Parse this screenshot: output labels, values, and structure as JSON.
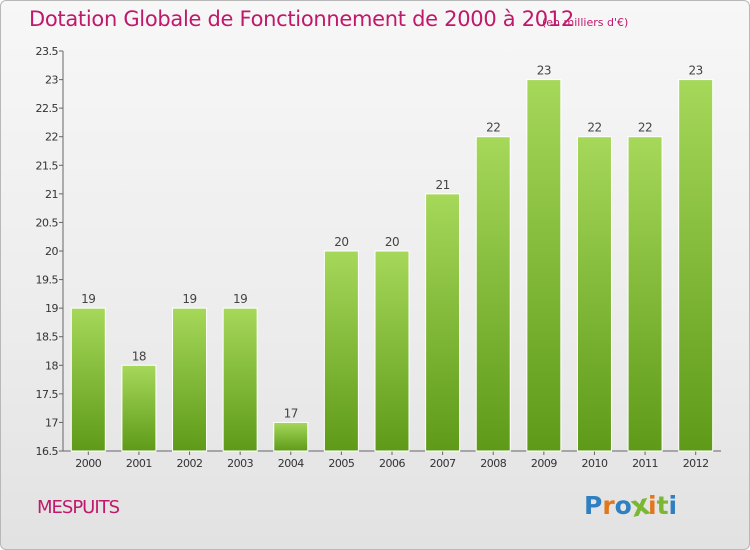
{
  "header": {
    "title": "Dotation Globale de Fonctionnement de 2000 à 2012",
    "unit": "(en milliers d'€)"
  },
  "footer": {
    "commune": "MESPUITS",
    "logo_letters": [
      "P",
      "r",
      "o",
      "x",
      "i",
      "t",
      "i"
    ]
  },
  "colors": {
    "title": "#c0186a",
    "bar_light": "#a6d85a",
    "bar_dark": "#5e9a18",
    "logo": [
      "#2f7fc1",
      "#e2761b",
      "#2f7fc1",
      "#7ab833",
      "#e2761b",
      "#7ab833",
      "#2f7fc1"
    ]
  },
  "chart_data": {
    "type": "bar",
    "categories": [
      "2000",
      "2001",
      "2002",
      "2003",
      "2004",
      "2005",
      "2006",
      "2007",
      "2008",
      "2009",
      "2010",
      "2011",
      "2012"
    ],
    "values": [
      19,
      18,
      19,
      19,
      17,
      20,
      20,
      21,
      22,
      23,
      22,
      22,
      23
    ],
    "data_labels": [
      "19",
      "18",
      "19",
      "19",
      "17",
      "20",
      "20",
      "21",
      "22",
      "23",
      "22",
      "22",
      "23"
    ],
    "title": "Dotation Globale de Fonctionnement de 2000 à 2012",
    "xlabel": "",
    "ylabel": "",
    "ylim": [
      16.5,
      23.5
    ],
    "yticks": [
      16.5,
      17,
      17.5,
      18,
      18.5,
      19,
      19.5,
      20,
      20.5,
      21,
      21.5,
      22,
      22.5,
      23,
      23.5
    ],
    "ytick_labels": [
      "16.5",
      "17",
      "17.5",
      "18",
      "18.5",
      "19",
      "19.5",
      "20",
      "20.5",
      "21",
      "21.5",
      "22",
      "22.5",
      "23",
      "23.5"
    ],
    "grid": false,
    "legend": "none"
  }
}
